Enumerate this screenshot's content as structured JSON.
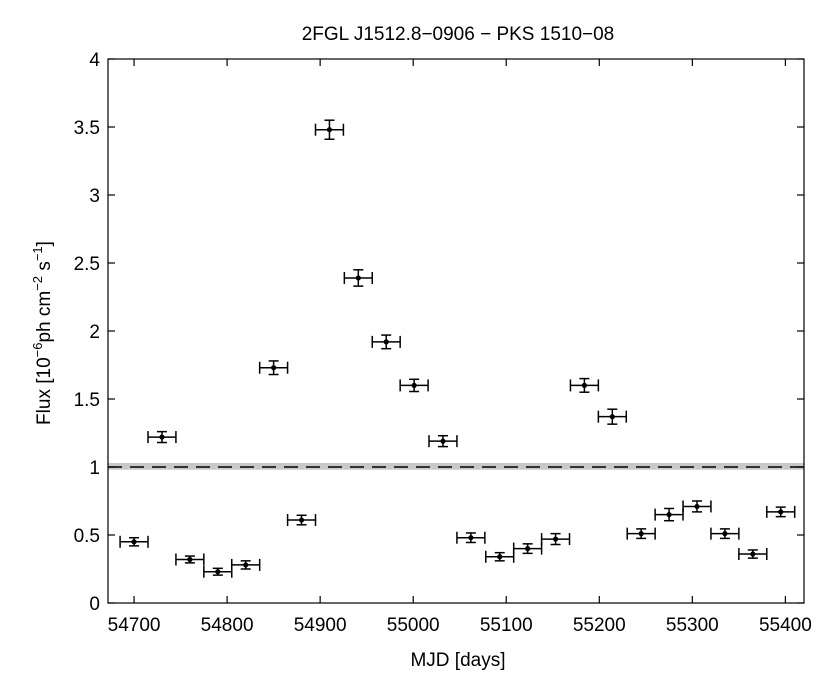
{
  "chart_data": {
    "type": "scatter",
    "title": "2FGL J1512.8−0906 − PKS 1510−08",
    "xlabel": "MJD [days]",
    "ylabel_main": "Flux [10",
    "ylabel_exp1": "−6",
    "ylabel_mid": "ph cm",
    "ylabel_exp2": "−2",
    "ylabel_end": " s",
    "ylabel_exp3": "−1",
    "ylabel_close": "]",
    "xlim": [
      54672,
      55420
    ],
    "ylim": [
      0,
      4
    ],
    "xticks": [
      54700,
      54800,
      54900,
      55000,
      55100,
      55200,
      55300,
      55400
    ],
    "xtick_labels": [
      "54700",
      "54800",
      "54900",
      "55000",
      "55100",
      "55200",
      "55300",
      "55400"
    ],
    "yticks": [
      0,
      0.5,
      1,
      1.5,
      2,
      2.5,
      3,
      3.5,
      4
    ],
    "ytick_labels": [
      "0",
      "0.5",
      "1",
      "1.5",
      "2",
      "2.5",
      "3",
      "3.5",
      "4"
    ],
    "reference_level": 1.0,
    "reference_band": [
      0.98,
      1.03
    ],
    "grid": false,
    "points": [
      {
        "x": 54700,
        "y": 0.45,
        "xerr": 15,
        "yerr": 0.03
      },
      {
        "x": 54730,
        "y": 1.22,
        "xerr": 15,
        "yerr": 0.04
      },
      {
        "x": 54760,
        "y": 0.32,
        "xerr": 15,
        "yerr": 0.025
      },
      {
        "x": 54790,
        "y": 0.23,
        "xerr": 15,
        "yerr": 0.025
      },
      {
        "x": 54820,
        "y": 0.28,
        "xerr": 15,
        "yerr": 0.03
      },
      {
        "x": 54850,
        "y": 1.73,
        "xerr": 15,
        "yerr": 0.05
      },
      {
        "x": 54880,
        "y": 0.61,
        "xerr": 15,
        "yerr": 0.035
      },
      {
        "x": 54910,
        "y": 3.48,
        "xerr": 15,
        "yerr": 0.07
      },
      {
        "x": 54941,
        "y": 2.39,
        "xerr": 15,
        "yerr": 0.06
      },
      {
        "x": 54971,
        "y": 1.92,
        "xerr": 15,
        "yerr": 0.05
      },
      {
        "x": 55001,
        "y": 1.6,
        "xerr": 15,
        "yerr": 0.045
      },
      {
        "x": 55032,
        "y": 1.19,
        "xerr": 15,
        "yerr": 0.04
      },
      {
        "x": 55062,
        "y": 0.48,
        "xerr": 15,
        "yerr": 0.035
      },
      {
        "x": 55093,
        "y": 0.34,
        "xerr": 15,
        "yerr": 0.03
      },
      {
        "x": 55123,
        "y": 0.4,
        "xerr": 15,
        "yerr": 0.035
      },
      {
        "x": 55153,
        "y": 0.47,
        "xerr": 15,
        "yerr": 0.04
      },
      {
        "x": 55184,
        "y": 1.6,
        "xerr": 15,
        "yerr": 0.05
      },
      {
        "x": 55214,
        "y": 1.37,
        "xerr": 15,
        "yerr": 0.055
      },
      {
        "x": 55245,
        "y": 0.51,
        "xerr": 15,
        "yerr": 0.035
      },
      {
        "x": 55275,
        "y": 0.65,
        "xerr": 15,
        "yerr": 0.045
      },
      {
        "x": 55305,
        "y": 0.71,
        "xerr": 15,
        "yerr": 0.04
      },
      {
        "x": 55335,
        "y": 0.51,
        "xerr": 15,
        "yerr": 0.035
      },
      {
        "x": 55365,
        "y": 0.36,
        "xerr": 15,
        "yerr": 0.03
      },
      {
        "x": 55395,
        "y": 0.67,
        "xerr": 15,
        "yerr": 0.035
      }
    ]
  }
}
